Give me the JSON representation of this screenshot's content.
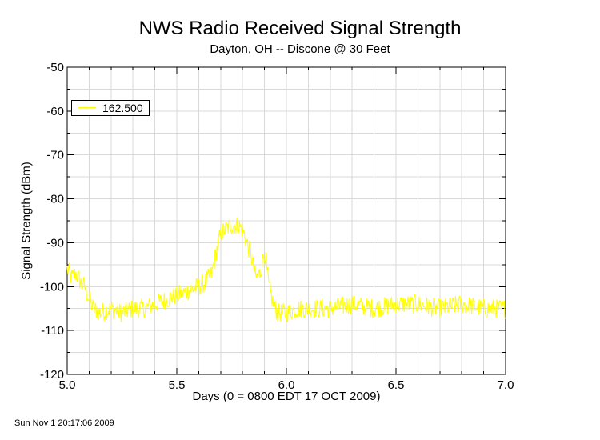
{
  "chart_data": {
    "type": "line",
    "title": "NWS Radio Received Signal Strength",
    "subtitle": "Dayton, OH -- Discone @ 30 Feet",
    "xlabel": "Days (0 = 0800 EDT 17 OCT 2009)",
    "ylabel": "Signal Strength (dBm)",
    "xlim": [
      5.0,
      7.0
    ],
    "ylim": [
      -120,
      -50
    ],
    "x_ticks": [
      "5.0",
      "5.5",
      "6.0",
      "6.5",
      "7.0"
    ],
    "y_ticks": [
      "-50",
      "-60",
      "-70",
      "-80",
      "-90",
      "-100",
      "-110",
      "-120"
    ],
    "grid": true,
    "legend_position": "upper-left",
    "series": [
      {
        "name": "162.500",
        "color": "#ffff00",
        "x": [
          5.0,
          5.02,
          5.04,
          5.06,
          5.08,
          5.1,
          5.12,
          5.15,
          5.2,
          5.25,
          5.3,
          5.35,
          5.4,
          5.45,
          5.5,
          5.55,
          5.6,
          5.63,
          5.66,
          5.68,
          5.7,
          5.72,
          5.75,
          5.78,
          5.8,
          5.82,
          5.84,
          5.86,
          5.88,
          5.9,
          5.92,
          5.94,
          5.96,
          6.0,
          6.05,
          6.1,
          6.2,
          6.3,
          6.4,
          6.5,
          6.6,
          6.7,
          6.8,
          6.9,
          7.0
        ],
        "y": [
          -96,
          -98,
          -97,
          -99,
          -100,
          -103,
          -105,
          -106,
          -105,
          -106,
          -105,
          -105,
          -104,
          -103,
          -102,
          -101,
          -100,
          -99,
          -97,
          -92,
          -88,
          -87,
          -86,
          -86,
          -87,
          -90,
          -93,
          -98,
          -97,
          -92,
          -100,
          -104,
          -106,
          -106,
          -105,
          -105,
          -105,
          -104,
          -105,
          -104,
          -104,
          -105,
          -104,
          -105,
          -105
        ]
      }
    ],
    "timestamp": "Sun Nov  1 20:17:06 2009"
  }
}
